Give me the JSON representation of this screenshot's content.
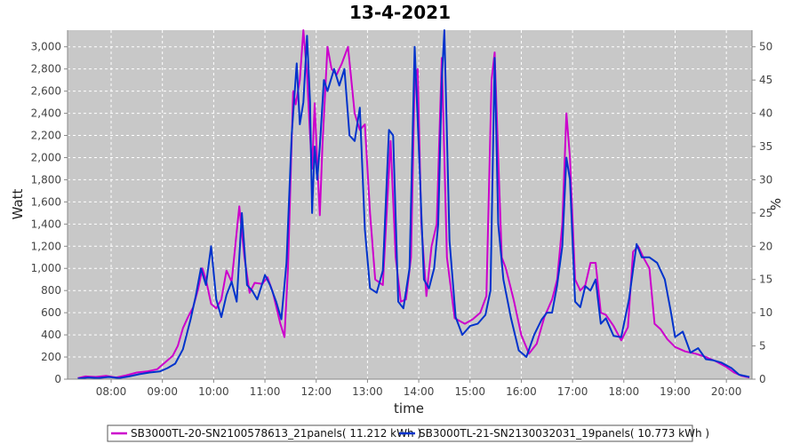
{
  "chart_data": {
    "type": "line",
    "title": "13-4-2021",
    "xlabel": "time",
    "ylabel": "Watt",
    "y2label": "%",
    "xlim": [
      7.15,
      20.5
    ],
    "ylim": [
      0,
      3150
    ],
    "y2lim": [
      0,
      52.5
    ],
    "x_ticks": [
      8,
      9,
      10,
      11,
      12,
      13,
      14,
      15,
      16,
      17,
      18,
      19,
      20
    ],
    "x_tick_labels": [
      "08:00",
      "09:00",
      "10:00",
      "11:00",
      "12:00",
      "13:00",
      "14:00",
      "15:00",
      "16:00",
      "17:00",
      "18:00",
      "19:00",
      "20:00"
    ],
    "y_ticks": [
      0,
      200,
      400,
      600,
      800,
      1000,
      1200,
      1400,
      1600,
      1800,
      2000,
      2200,
      2400,
      2600,
      2800,
      3000
    ],
    "y_tick_labels": [
      "0",
      "200",
      "400",
      "600",
      "800",
      "1,000",
      "1,200",
      "1,400",
      "1,600",
      "1,800",
      "2,000",
      "2,200",
      "2,400",
      "2,600",
      "2,800",
      "3,000"
    ],
    "y2_ticks": [
      0,
      5,
      10,
      15,
      20,
      25,
      30,
      35,
      40,
      45,
      50
    ],
    "y2_tick_labels": [
      "0",
      "5",
      "10",
      "15",
      "20",
      "25",
      "30",
      "35",
      "40",
      "45",
      "50"
    ],
    "grid": true,
    "legend_position": "bottom",
    "series": [
      {
        "name": "SB3000TL-20-SN2100578613_21panels( 11.212 kWh )",
        "color": "#cc00cc",
        "points": [
          [
            7.35,
            10
          ],
          [
            7.5,
            25
          ],
          [
            7.7,
            20
          ],
          [
            7.9,
            30
          ],
          [
            8.1,
            15
          ],
          [
            8.3,
            35
          ],
          [
            8.5,
            60
          ],
          [
            8.7,
            70
          ],
          [
            8.9,
            90
          ],
          [
            9.0,
            130
          ],
          [
            9.1,
            170
          ],
          [
            9.2,
            210
          ],
          [
            9.3,
            300
          ],
          [
            9.4,
            460
          ],
          [
            9.5,
            560
          ],
          [
            9.6,
            650
          ],
          [
            9.7,
            820
          ],
          [
            9.78,
            1000
          ],
          [
            9.85,
            900
          ],
          [
            9.95,
            680
          ],
          [
            10.05,
            640
          ],
          [
            10.15,
            720
          ],
          [
            10.25,
            980
          ],
          [
            10.35,
            880
          ],
          [
            10.5,
            1560
          ],
          [
            10.6,
            1100
          ],
          [
            10.7,
            780
          ],
          [
            10.8,
            870
          ],
          [
            10.95,
            860
          ],
          [
            11.05,
            920
          ],
          [
            11.15,
            790
          ],
          [
            11.3,
            500
          ],
          [
            11.38,
            380
          ],
          [
            11.45,
            1000
          ],
          [
            11.55,
            2600
          ],
          [
            11.6,
            2480
          ],
          [
            11.68,
            2700
          ],
          [
            11.75,
            3150
          ],
          [
            11.82,
            2750
          ],
          [
            11.88,
            2200
          ],
          [
            11.92,
            1900
          ],
          [
            11.97,
            2490
          ],
          [
            12.02,
            1950
          ],
          [
            12.07,
            1480
          ],
          [
            12.12,
            2100
          ],
          [
            12.22,
            3000
          ],
          [
            12.3,
            2800
          ],
          [
            12.4,
            2750
          ],
          [
            12.5,
            2850
          ],
          [
            12.62,
            3000
          ],
          [
            12.75,
            2400
          ],
          [
            12.85,
            2250
          ],
          [
            12.95,
            2300
          ],
          [
            13.05,
            1500
          ],
          [
            13.15,
            900
          ],
          [
            13.3,
            850
          ],
          [
            13.45,
            2150
          ],
          [
            13.55,
            1100
          ],
          [
            13.65,
            700
          ],
          [
            13.75,
            720
          ],
          [
            13.85,
            1100
          ],
          [
            13.92,
            2700
          ],
          [
            13.98,
            2800
          ],
          [
            14.05,
            1400
          ],
          [
            14.15,
            750
          ],
          [
            14.25,
            1200
          ],
          [
            14.35,
            1400
          ],
          [
            14.45,
            2900
          ],
          [
            14.55,
            1100
          ],
          [
            14.7,
            550
          ],
          [
            14.9,
            500
          ],
          [
            15.05,
            540
          ],
          [
            15.2,
            600
          ],
          [
            15.32,
            750
          ],
          [
            15.42,
            2700
          ],
          [
            15.48,
            2950
          ],
          [
            15.55,
            2000
          ],
          [
            15.62,
            1100
          ],
          [
            15.7,
            1000
          ],
          [
            15.85,
            720
          ],
          [
            16.0,
            400
          ],
          [
            16.15,
            230
          ],
          [
            16.3,
            320
          ],
          [
            16.45,
            560
          ],
          [
            16.6,
            720
          ],
          [
            16.7,
            900
          ],
          [
            16.8,
            1400
          ],
          [
            16.88,
            2400
          ],
          [
            16.95,
            2000
          ],
          [
            17.05,
            900
          ],
          [
            17.15,
            800
          ],
          [
            17.25,
            850
          ],
          [
            17.35,
            1050
          ],
          [
            17.45,
            1050
          ],
          [
            17.55,
            600
          ],
          [
            17.65,
            580
          ],
          [
            17.8,
            480
          ],
          [
            17.95,
            350
          ],
          [
            18.08,
            470
          ],
          [
            18.18,
            1150
          ],
          [
            18.28,
            1200
          ],
          [
            18.38,
            1100
          ],
          [
            18.5,
            1000
          ],
          [
            18.6,
            500
          ],
          [
            18.72,
            450
          ],
          [
            18.85,
            360
          ],
          [
            19.0,
            290
          ],
          [
            19.2,
            250
          ],
          [
            19.4,
            230
          ],
          [
            19.6,
            200
          ],
          [
            19.8,
            160
          ],
          [
            20.0,
            110
          ],
          [
            20.15,
            60
          ],
          [
            20.3,
            30
          ],
          [
            20.45,
            15
          ]
        ]
      },
      {
        "name": "SB3000TL-21-SN2130032031_19panels( 10.773 kWh )",
        "color": "#0033cc",
        "points": [
          [
            7.35,
            5
          ],
          [
            7.55,
            15
          ],
          [
            7.75,
            10
          ],
          [
            7.95,
            20
          ],
          [
            8.15,
            10
          ],
          [
            8.35,
            25
          ],
          [
            8.55,
            45
          ],
          [
            8.75,
            60
          ],
          [
            8.95,
            70
          ],
          [
            9.1,
            100
          ],
          [
            9.25,
            140
          ],
          [
            9.4,
            270
          ],
          [
            9.55,
            540
          ],
          [
            9.65,
            750
          ],
          [
            9.75,
            1000
          ],
          [
            9.85,
            850
          ],
          [
            9.95,
            1200
          ],
          [
            10.05,
            720
          ],
          [
            10.15,
            560
          ],
          [
            10.25,
            760
          ],
          [
            10.35,
            880
          ],
          [
            10.45,
            700
          ],
          [
            10.55,
            1500
          ],
          [
            10.65,
            850
          ],
          [
            10.75,
            800
          ],
          [
            10.85,
            720
          ],
          [
            11.0,
            940
          ],
          [
            11.1,
            850
          ],
          [
            11.22,
            700
          ],
          [
            11.32,
            540
          ],
          [
            11.42,
            1050
          ],
          [
            11.52,
            2200
          ],
          [
            11.62,
            2850
          ],
          [
            11.68,
            2300
          ],
          [
            11.75,
            2500
          ],
          [
            11.82,
            3100
          ],
          [
            11.88,
            2500
          ],
          [
            11.92,
            1500
          ],
          [
            11.97,
            2100
          ],
          [
            12.02,
            1800
          ],
          [
            12.07,
            2100
          ],
          [
            12.15,
            2700
          ],
          [
            12.22,
            2600
          ],
          [
            12.35,
            2800
          ],
          [
            12.45,
            2650
          ],
          [
            12.55,
            2800
          ],
          [
            12.65,
            2200
          ],
          [
            12.75,
            2150
          ],
          [
            12.85,
            2450
          ],
          [
            12.95,
            1350
          ],
          [
            13.05,
            820
          ],
          [
            13.18,
            780
          ],
          [
            13.3,
            980
          ],
          [
            13.42,
            2250
          ],
          [
            13.5,
            2200
          ],
          [
            13.6,
            700
          ],
          [
            13.7,
            640
          ],
          [
            13.82,
            1000
          ],
          [
            13.92,
            3000
          ],
          [
            14.0,
            2100
          ],
          [
            14.1,
            900
          ],
          [
            14.2,
            820
          ],
          [
            14.3,
            1000
          ],
          [
            14.38,
            1400
          ],
          [
            14.45,
            2700
          ],
          [
            14.5,
            3150
          ],
          [
            14.6,
            1250
          ],
          [
            14.72,
            560
          ],
          [
            14.85,
            400
          ],
          [
            15.0,
            480
          ],
          [
            15.15,
            500
          ],
          [
            15.3,
            580
          ],
          [
            15.4,
            800
          ],
          [
            15.48,
            2900
          ],
          [
            15.55,
            1400
          ],
          [
            15.65,
            900
          ],
          [
            15.8,
            550
          ],
          [
            15.95,
            260
          ],
          [
            16.1,
            200
          ],
          [
            16.25,
            400
          ],
          [
            16.4,
            540
          ],
          [
            16.5,
            600
          ],
          [
            16.6,
            600
          ],
          [
            16.7,
            850
          ],
          [
            16.8,
            1200
          ],
          [
            16.88,
            2000
          ],
          [
            16.95,
            1800
          ],
          [
            17.05,
            700
          ],
          [
            17.15,
            650
          ],
          [
            17.25,
            840
          ],
          [
            17.35,
            800
          ],
          [
            17.45,
            900
          ],
          [
            17.55,
            500
          ],
          [
            17.65,
            550
          ],
          [
            17.8,
            390
          ],
          [
            17.95,
            380
          ],
          [
            18.1,
            720
          ],
          [
            18.25,
            1220
          ],
          [
            18.35,
            1100
          ],
          [
            18.5,
            1100
          ],
          [
            18.65,
            1050
          ],
          [
            18.8,
            900
          ],
          [
            18.92,
            600
          ],
          [
            19.0,
            380
          ],
          [
            19.15,
            430
          ],
          [
            19.3,
            240
          ],
          [
            19.45,
            280
          ],
          [
            19.6,
            180
          ],
          [
            19.75,
            170
          ],
          [
            19.9,
            150
          ],
          [
            20.1,
            100
          ],
          [
            20.25,
            40
          ],
          [
            20.45,
            20
          ]
        ]
      }
    ]
  }
}
